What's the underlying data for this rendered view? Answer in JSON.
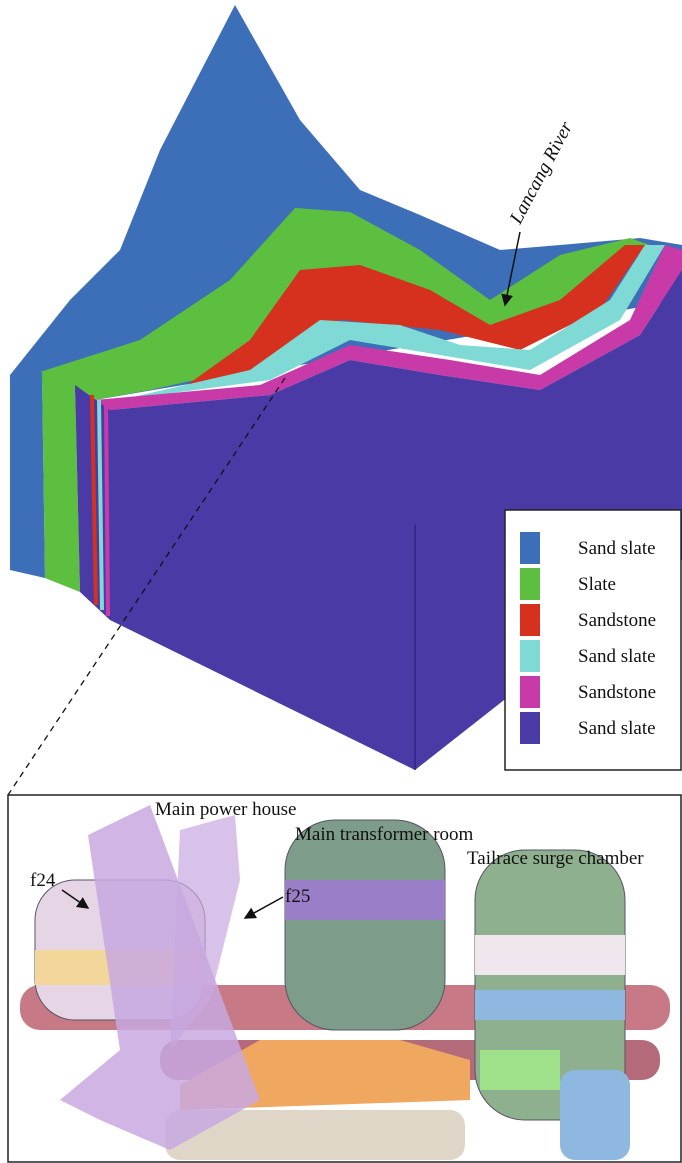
{
  "top_model": {
    "river_label": "Lancang River",
    "legend": [
      {
        "label": "Sand slate",
        "color": "#3d6fb8"
      },
      {
        "label": "Slate",
        "color": "#5cbf3f"
      },
      {
        "label": "Sandstone",
        "color": "#d6301f"
      },
      {
        "label": "Sand slate",
        "color": "#7fd9d4"
      },
      {
        "label": "Sandstone",
        "color": "#c83aa8"
      },
      {
        "label": "Sand slate",
        "color": "#4a3aa6"
      }
    ]
  },
  "bottom_model": {
    "labels": {
      "main_power_house": "Main power house",
      "main_transformer_room": "Main transformer room",
      "tailrace_surge_chamber": "Tailrace surge chamber",
      "f24": "f24",
      "f25": "f25"
    }
  }
}
